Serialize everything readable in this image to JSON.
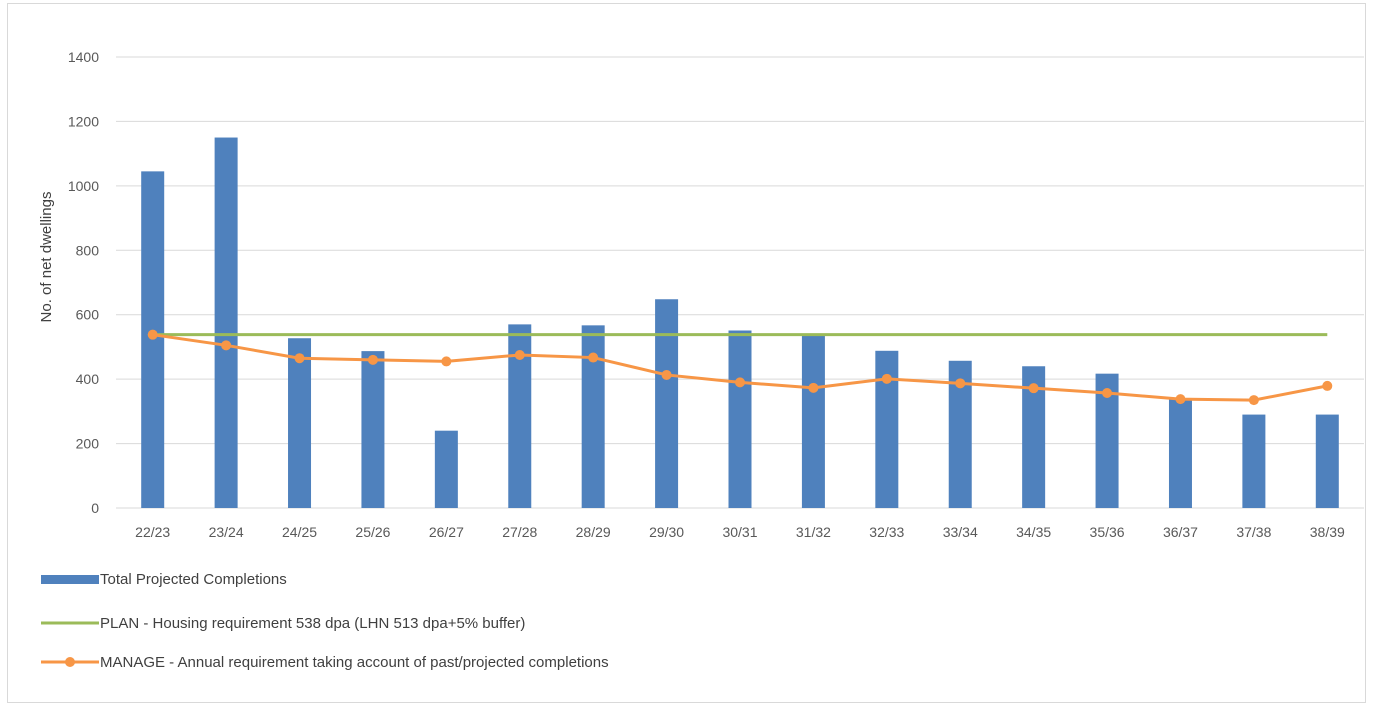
{
  "chart_data": {
    "type": "bar",
    "title": "",
    "xlabel": "",
    "ylabel": "No. of net dwellings",
    "ylim": [
      0,
      1400
    ],
    "yticks": [
      0,
      200,
      400,
      600,
      800,
      1000,
      1200,
      1400
    ],
    "grid": true,
    "legend_position": "bottom-left",
    "categories": [
      "22/23",
      "23/24",
      "24/25",
      "25/26",
      "26/27",
      "27/28",
      "28/29",
      "29/30",
      "30/31",
      "31/32",
      "32/33",
      "33/34",
      "34/35",
      "35/36",
      "36/37",
      "37/38",
      "38/39"
    ],
    "series": [
      {
        "name": "Total Projected Completions",
        "type": "bar",
        "color": "#4f81bd",
        "values": [
          1045,
          1150,
          527,
          487,
          240,
          570,
          567,
          648,
          551,
          537,
          488,
          457,
          440,
          417,
          338,
          290,
          290
        ]
      },
      {
        "name": "PLAN - Housing requirement 538 dpa (LHN 513 dpa+5% buffer)",
        "type": "line",
        "color": "#9bbb59",
        "values": [
          538,
          538,
          538,
          538,
          538,
          538,
          538,
          538,
          538,
          538,
          538,
          538,
          538,
          538,
          538,
          538,
          538
        ]
      },
      {
        "name": "MANAGE - Annual requirement taking account of past/projected completions",
        "type": "line",
        "markers": true,
        "color": "#f79646",
        "values": [
          538,
          505,
          465,
          460,
          455,
          475,
          467,
          413,
          390,
          373,
          401,
          387,
          372,
          357,
          338,
          335,
          379
        ]
      }
    ]
  }
}
